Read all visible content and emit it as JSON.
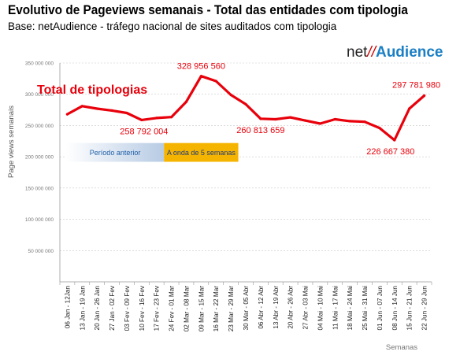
{
  "header": {
    "title": "Evolutivo de Pageviews semanais - Total das entidades com tipologia",
    "subtitle": "Base: netAudience - tráfego nacional de sites auditados com tipologia"
  },
  "logo": {
    "part1": "net",
    "part2": "//",
    "part3": "Audience"
  },
  "chart_data": {
    "type": "line",
    "ylabel": "Page views semanais",
    "xlabel": "Semanas",
    "ylim": [
      0,
      350000000
    ],
    "yticks": [
      0,
      50000000,
      100000000,
      150000000,
      200000000,
      250000000,
      300000000,
      350000000
    ],
    "ytick_labels": [
      "",
      "50 000 000",
      "100 000 000",
      "150 000 000",
      "200 000 000",
      "250 000 000",
      "300 000 000",
      "350 000 000"
    ],
    "categories": [
      "06 Jan - 12Jan",
      "13 Jan - 19 Jan",
      "20 Jan - 26 Jan",
      "27 Jan - 02 Fev",
      "03 Fev - 09 Fev",
      "10 Fev - 16 Fev",
      "17 Fev - 23 Fev",
      "24 Fev - 01 Mar",
      "02 Mar - 08 Mar",
      "09 Mar - 15 Mar",
      "16 Mar - 22 Mar",
      "23 Mar - 29 Mar",
      "30 Mar - 05 Abr",
      "06 Abr - 12 Abr",
      "13 Abr - 19 Abr",
      "20 Abr - 26 Abr",
      "27 Abr - 03 Mai",
      "04 Mai - 10 Mai",
      "11 Mai - 17 Mai",
      "18 Mai - 24 Mai",
      "25 Mai - 31 Mai",
      "01 Jun - 07 Jun",
      "08 Jun - 14 Jun",
      "15 Jun - 21 Jun",
      "22 Jun - 29 Jun"
    ],
    "series": [
      {
        "name": "Total de tipologias",
        "color": "#e8000b",
        "values": [
          268000000,
          281000000,
          277000000,
          274000000,
          270000000,
          258792004,
          262000000,
          263500000,
          288000000,
          328956560,
          321000000,
          299000000,
          284000000,
          260813659,
          260000000,
          263000000,
          258000000,
          253000000,
          260000000,
          257000000,
          256000000,
          246000000,
          226667380,
          277000000,
          297781980
        ]
      }
    ],
    "data_labels": [
      {
        "index": 9,
        "text": "328 956 560"
      },
      {
        "index": 5,
        "text": "258 792 004"
      },
      {
        "index": 13,
        "text": "260 813 659"
      },
      {
        "index": 22,
        "text": "226 667 380"
      },
      {
        "index": 24,
        "text": "297 781 980"
      }
    ],
    "periods": [
      {
        "label": "Período anterior",
        "start": 0,
        "end": 7,
        "color": "#dfe8f4",
        "text_color": "#1f5fa8"
      },
      {
        "label": "A onda de 5 semanas",
        "start": 7,
        "end": 12,
        "color": "#f5b400",
        "text_color": "#1f3a7a"
      }
    ],
    "grid": true,
    "legend": "top-left"
  }
}
